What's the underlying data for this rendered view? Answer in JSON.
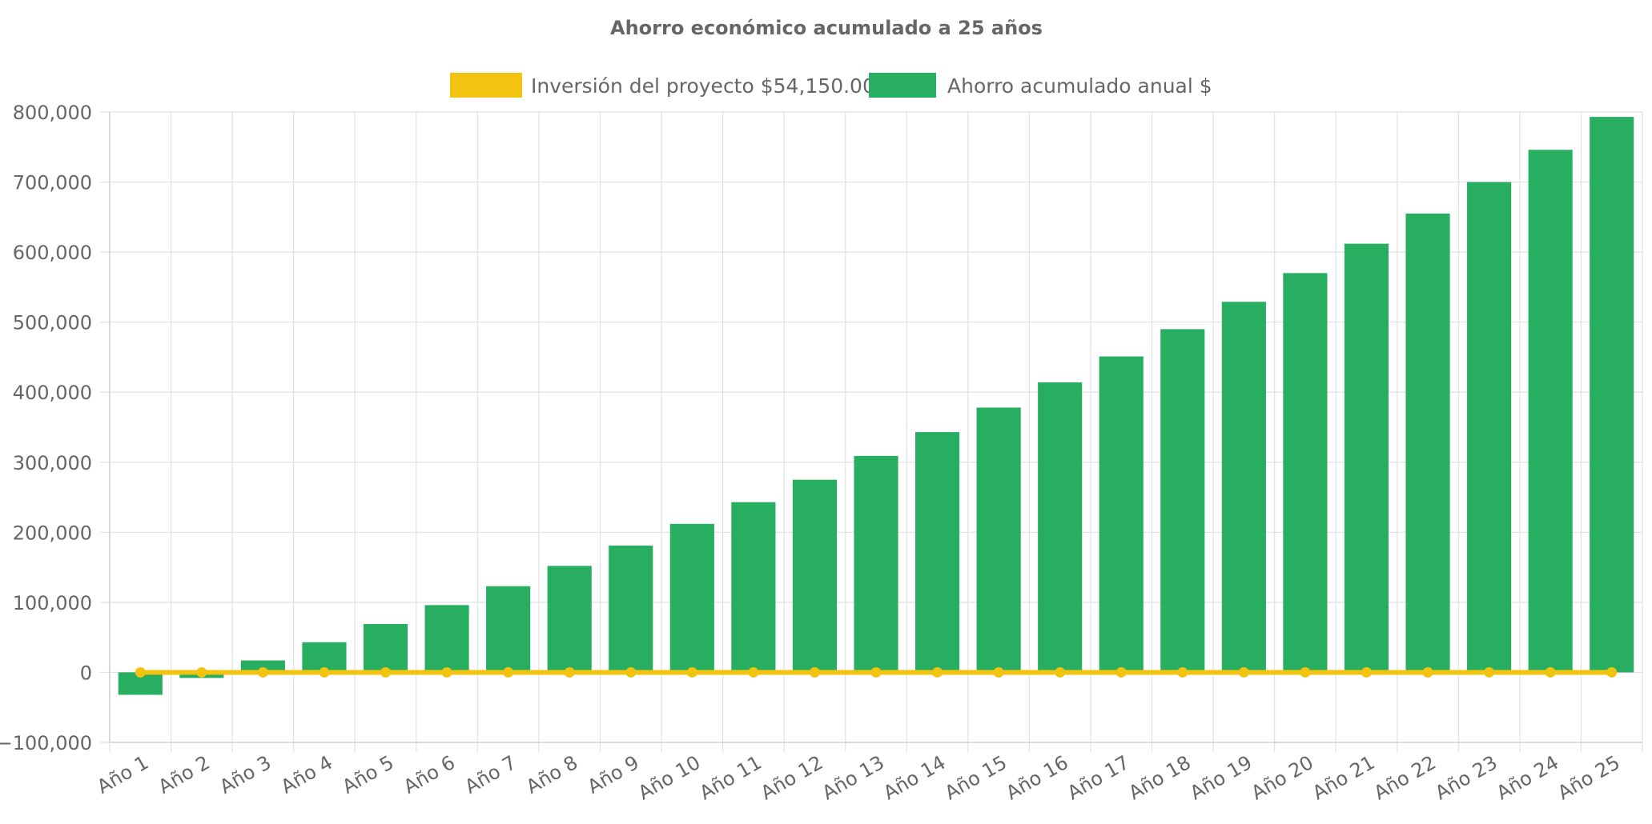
{
  "chart_data": {
    "type": "bar",
    "title": "Ahorro económico acumulado a 25 años",
    "categories": [
      "Año 1",
      "Año 2",
      "Año 3",
      "Año 4",
      "Año 5",
      "Año 6",
      "Año 7",
      "Año 8",
      "Año 9",
      "Año 10",
      "Año 11",
      "Año 12",
      "Año 13",
      "Año 14",
      "Año 15",
      "Año 16",
      "Año 17",
      "Año 18",
      "Año 19",
      "Año 20",
      "Año 21",
      "Año 22",
      "Año 23",
      "Año 24",
      "Año 25"
    ],
    "series": [
      {
        "name": "Inversión del proyecto $54,150.00",
        "type": "line",
        "color": "#f2c40f",
        "values": [
          0,
          0,
          0,
          0,
          0,
          0,
          0,
          0,
          0,
          0,
          0,
          0,
          0,
          0,
          0,
          0,
          0,
          0,
          0,
          0,
          0,
          0,
          0,
          0,
          0
        ]
      },
      {
        "name": "Ahorro acumulado anual $",
        "type": "bar",
        "color": "#27ae60",
        "values": [
          -32000,
          -8000,
          17000,
          43000,
          69000,
          96000,
          123000,
          152000,
          181000,
          212000,
          243000,
          275000,
          309000,
          343000,
          378000,
          414000,
          451000,
          490000,
          529000,
          570000,
          612000,
          655000,
          700000,
          746000,
          793000
        ]
      }
    ],
    "ylim": [
      -100000,
      800000
    ],
    "yticks": [
      "800,000",
      "700,000",
      "600,000",
      "500,000",
      "400,000",
      "300,000",
      "200,000",
      "100,000",
      "0",
      "−100,000"
    ],
    "ytick_values": [
      800000,
      700000,
      600000,
      500000,
      400000,
      300000,
      200000,
      100000,
      0,
      -100000
    ],
    "grid": true,
    "legend_position": "top",
    "xlabel": "",
    "ylabel": ""
  }
}
